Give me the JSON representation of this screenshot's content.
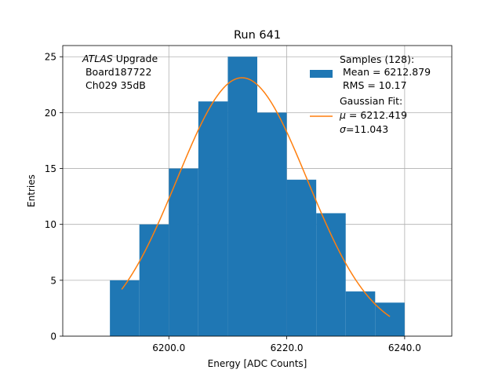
{
  "chart_data": {
    "type": "bar",
    "title": "Run 641",
    "xlabel": "Energy [ADC Counts]",
    "ylabel": "Entries",
    "xlim": [
      6182,
      6248
    ],
    "ylim": [
      0,
      26
    ],
    "x_ticks": [
      6200.0,
      6220.0,
      6240.0
    ],
    "x_tick_labels": [
      "6200.0",
      "6220.0",
      "6240.0"
    ],
    "y_ticks": [
      0,
      5,
      10,
      15,
      20,
      25
    ],
    "y_tick_labels": [
      "0",
      "5",
      "10",
      "15",
      "20",
      "25"
    ],
    "grid": true,
    "bins": [
      {
        "x0": 6190,
        "x1": 6195,
        "count": 5
      },
      {
        "x0": 6195,
        "x1": 6200,
        "count": 10
      },
      {
        "x0": 6200,
        "x1": 6205,
        "count": 15
      },
      {
        "x0": 6205,
        "x1": 6210,
        "count": 21
      },
      {
        "x0": 6210,
        "x1": 6215,
        "count": 25
      },
      {
        "x0": 6215,
        "x1": 6220,
        "count": 20
      },
      {
        "x0": 6220,
        "x1": 6225,
        "count": 14
      },
      {
        "x0": 6225,
        "x1": 6230,
        "count": 11
      },
      {
        "x0": 6230,
        "x1": 6235,
        "count": 4
      },
      {
        "x0": 6235,
        "x1": 6240,
        "count": 3
      }
    ],
    "gaussian_fit": {
      "mu": 6212.419,
      "sigma": 11.043,
      "x_start": 6192.0,
      "x_end": 6237.5
    },
    "colors": {
      "hist": "#1f77b4",
      "fit": "#ff7f0e",
      "grid": "#b0b0b0"
    },
    "annotation": {
      "line1_italic": "ATLAS",
      "line1_rest": " Upgrade",
      "line2": " Board187722",
      "line3": " Ch029 35dB"
    },
    "legend": {
      "placement": "top-right",
      "hist_line1": "Samples (128):",
      "hist_line2": " Mean = 6212.879",
      "hist_line3": " RMS = 10.17",
      "fit_line1": "Gaussian Fit:",
      "fit_line2": "$\\mu$ = 6212.419",
      "fit_line3": "$\\sigma$=11.043"
    }
  }
}
